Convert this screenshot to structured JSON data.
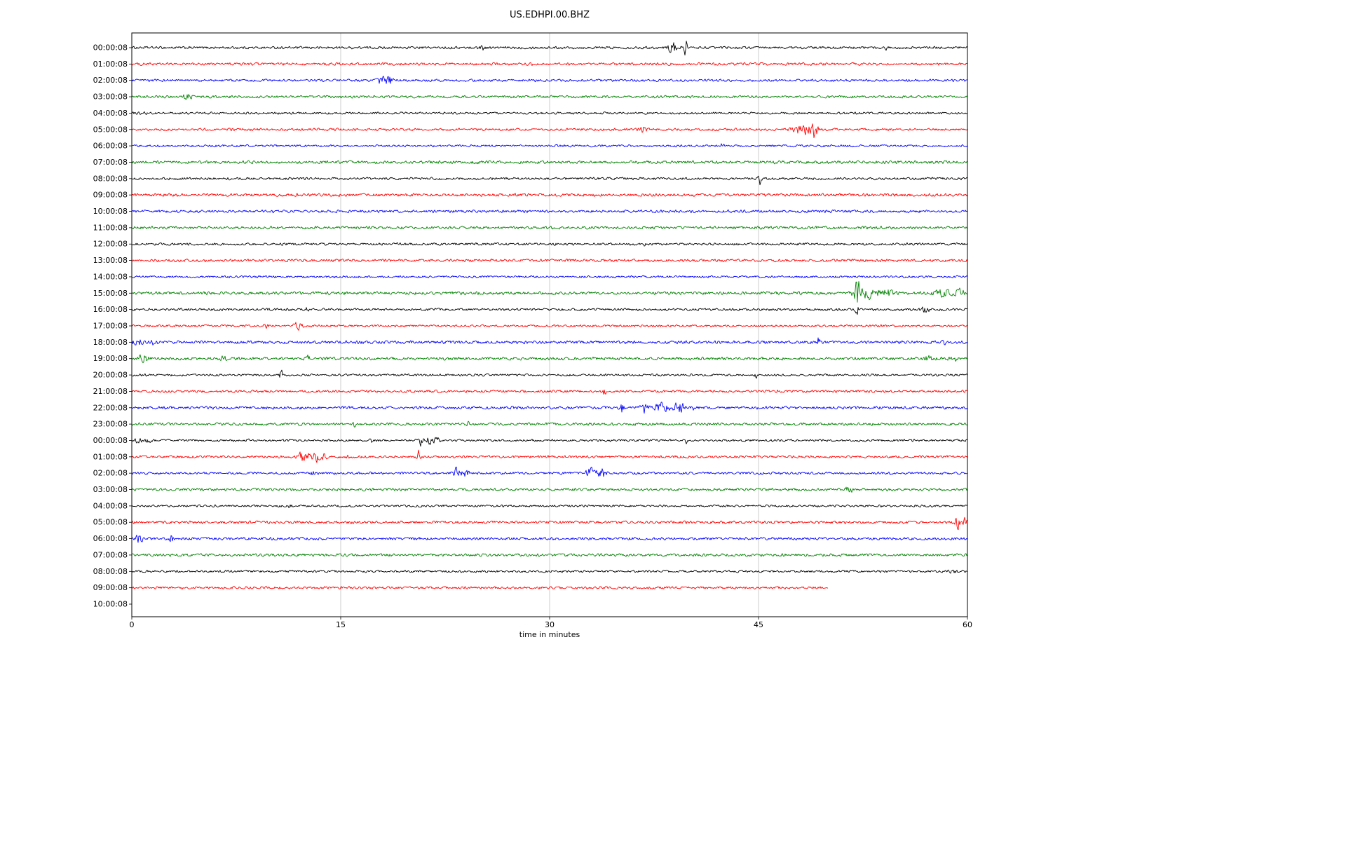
{
  "chart_data": {
    "type": "line",
    "subtype": "helicorder-dayplot-seismogram",
    "title": "US.EDHPI.00.BHZ",
    "xlabel": "time in minutes",
    "xlim": [
      0,
      60
    ],
    "x_ticks": [
      0,
      15,
      30,
      45,
      60
    ],
    "grid": "vertical-gridlines-at-ticks",
    "gridline_color": "#cccccc",
    "trace_colors_cycle": [
      "#000000",
      "#ff0000",
      "#0000ff",
      "#008000"
    ],
    "rows": [
      {
        "label": "00:00:08",
        "color": "#000000",
        "duration_min": 60,
        "base_amp": 2.0,
        "events": [
          {
            "t": 25.1,
            "w": 0.2,
            "a": 5
          },
          {
            "t": 38.8,
            "w": 0.3,
            "a": 9
          },
          {
            "t": 39.8,
            "w": 0.12,
            "a": 16
          },
          {
            "t": 54.2,
            "w": 0.08,
            "a": 5
          }
        ]
      },
      {
        "label": "01:00:08",
        "color": "#ff0000",
        "duration_min": 60,
        "base_amp": 2.2,
        "events": []
      },
      {
        "label": "02:00:08",
        "color": "#0000ff",
        "duration_min": 60,
        "base_amp": 2.0,
        "events": [
          {
            "t": 18.1,
            "w": 0.35,
            "a": 10
          },
          {
            "t": 18.6,
            "w": 0.2,
            "a": 6
          }
        ]
      },
      {
        "label": "03:00:08",
        "color": "#008000",
        "duration_min": 60,
        "base_amp": 2.0,
        "events": [
          {
            "t": 4.0,
            "w": 0.3,
            "a": 5
          }
        ]
      },
      {
        "label": "04:00:08",
        "color": "#000000",
        "duration_min": 60,
        "base_amp": 1.8,
        "events": [
          {
            "t": 1.0,
            "w": 1.5,
            "a": 0.7
          }
        ]
      },
      {
        "label": "05:00:08",
        "color": "#ff0000",
        "duration_min": 60,
        "base_amp": 2.0,
        "events": [
          {
            "t": 36.6,
            "w": 0.3,
            "a": 7
          },
          {
            "t": 47.9,
            "w": 0.5,
            "a": 6
          },
          {
            "t": 48.5,
            "w": 0.15,
            "a": 8
          },
          {
            "t": 49.0,
            "w": 0.2,
            "a": 20
          }
        ]
      },
      {
        "label": "06:00:08",
        "color": "#0000ff",
        "duration_min": 60,
        "base_amp": 1.8,
        "events": [
          {
            "t": 42.4,
            "w": 0.08,
            "a": 6
          }
        ]
      },
      {
        "label": "07:00:08",
        "color": "#008000",
        "duration_min": 60,
        "base_amp": 2.4,
        "events": [
          {
            "t": 24.8,
            "w": 0.3,
            "a": 2
          }
        ]
      },
      {
        "label": "08:00:08",
        "color": "#000000",
        "duration_min": 60,
        "base_amp": 2.0,
        "events": [
          {
            "t": 45.1,
            "w": 0.15,
            "a": 10
          }
        ]
      },
      {
        "label": "09:00:08",
        "color": "#ff0000",
        "duration_min": 60,
        "base_amp": 2.4,
        "events": []
      },
      {
        "label": "10:00:08",
        "color": "#0000ff",
        "duration_min": 60,
        "base_amp": 2.2,
        "events": []
      },
      {
        "label": "11:00:08",
        "color": "#008000",
        "duration_min": 60,
        "base_amp": 2.2,
        "events": []
      },
      {
        "label": "12:00:08",
        "color": "#000000",
        "duration_min": 60,
        "base_amp": 2.0,
        "events": [
          {
            "t": 30.3,
            "w": 0.08,
            "a": 3
          },
          {
            "t": 36.8,
            "w": 0.1,
            "a": 2
          }
        ]
      },
      {
        "label": "13:00:08",
        "color": "#ff0000",
        "duration_min": 60,
        "base_amp": 2.2,
        "events": []
      },
      {
        "label": "14:00:08",
        "color": "#0000ff",
        "duration_min": 60,
        "base_amp": 1.8,
        "events": []
      },
      {
        "label": "15:00:08",
        "color": "#008000",
        "duration_min": 60,
        "base_amp": 2.4,
        "events": [
          {
            "t": 52.1,
            "w": 0.3,
            "a": 22
          },
          {
            "t": 53.0,
            "w": 0.7,
            "a": 9
          },
          {
            "t": 54.3,
            "w": 0.5,
            "a": 5
          },
          {
            "t": 58.5,
            "w": 1.0,
            "a": 5
          },
          {
            "t": 59.5,
            "w": 0.3,
            "a": 4
          }
        ]
      },
      {
        "label": "16:00:08",
        "color": "#000000",
        "duration_min": 60,
        "base_amp": 2.0,
        "events": [
          {
            "t": 12.6,
            "w": 0.2,
            "a": 3
          },
          {
            "t": 52.1,
            "w": 0.12,
            "a": 9
          },
          {
            "t": 57.0,
            "w": 0.3,
            "a": 4
          }
        ]
      },
      {
        "label": "17:00:08",
        "color": "#ff0000",
        "duration_min": 60,
        "base_amp": 1.8,
        "events": [
          {
            "t": 9.7,
            "w": 0.25,
            "a": 4
          },
          {
            "t": 11.9,
            "w": 0.3,
            "a": 6
          }
        ]
      },
      {
        "label": "18:00:08",
        "color": "#0000ff",
        "duration_min": 60,
        "base_amp": 2.4,
        "events": [
          {
            "t": 0.4,
            "w": 0.3,
            "a": 6
          },
          {
            "t": 1.5,
            "w": 0.3,
            "a": 3
          },
          {
            "t": 49.3,
            "w": 0.1,
            "a": 9
          },
          {
            "t": 58.3,
            "w": 0.2,
            "a": 3
          }
        ]
      },
      {
        "label": "19:00:08",
        "color": "#008000",
        "duration_min": 60,
        "base_amp": 2.4,
        "events": [
          {
            "t": 0.8,
            "w": 0.4,
            "a": 6
          },
          {
            "t": 6.6,
            "w": 0.2,
            "a": 3
          },
          {
            "t": 12.6,
            "w": 0.15,
            "a": 6
          },
          {
            "t": 57.2,
            "w": 0.25,
            "a": 5
          },
          {
            "t": 59.0,
            "w": 0.3,
            "a": 4
          }
        ]
      },
      {
        "label": "20:00:08",
        "color": "#000000",
        "duration_min": 60,
        "base_amp": 1.8,
        "events": [
          {
            "t": 10.7,
            "w": 0.1,
            "a": 12
          },
          {
            "t": 44.8,
            "w": 0.1,
            "a": 5
          }
        ]
      },
      {
        "label": "21:00:08",
        "color": "#ff0000",
        "duration_min": 60,
        "base_amp": 2.0,
        "events": [
          {
            "t": 33.9,
            "w": 0.12,
            "a": 9
          },
          {
            "t": 46.3,
            "w": 0.1,
            "a": 4
          }
        ]
      },
      {
        "label": "22:00:08",
        "color": "#0000ff",
        "duration_min": 60,
        "base_amp": 2.4,
        "events": [
          {
            "t": 35.2,
            "w": 0.12,
            "a": 9
          },
          {
            "t": 36.8,
            "w": 0.25,
            "a": 7
          },
          {
            "t": 38.0,
            "w": 0.5,
            "a": 8
          },
          {
            "t": 39.3,
            "w": 0.4,
            "a": 7
          },
          {
            "t": 40.4,
            "w": 0.15,
            "a": 5
          }
        ]
      },
      {
        "label": "23:00:08",
        "color": "#008000",
        "duration_min": 60,
        "base_amp": 2.2,
        "events": [
          {
            "t": 15.9,
            "w": 0.15,
            "a": 4
          },
          {
            "t": 24.2,
            "w": 0.15,
            "a": 3
          }
        ]
      },
      {
        "label": "00:00:08",
        "color": "#000000",
        "duration_min": 60,
        "base_amp": 1.8,
        "events": [
          {
            "t": 0.5,
            "w": 0.2,
            "a": 5
          },
          {
            "t": 1.2,
            "w": 0.2,
            "a": 3
          },
          {
            "t": 8.3,
            "w": 0.1,
            "a": 3
          },
          {
            "t": 17.2,
            "w": 0.1,
            "a": 5
          },
          {
            "t": 20.7,
            "w": 0.2,
            "a": 13
          },
          {
            "t": 21.4,
            "w": 0.25,
            "a": 7
          },
          {
            "t": 21.9,
            "w": 0.15,
            "a": 6
          },
          {
            "t": 39.8,
            "w": 0.08,
            "a": 4
          }
        ]
      },
      {
        "label": "01:00:08",
        "color": "#ff0000",
        "duration_min": 60,
        "base_amp": 2.0,
        "events": [
          {
            "t": 12.2,
            "w": 0.25,
            "a": 9
          },
          {
            "t": 13.0,
            "w": 0.4,
            "a": 11
          },
          {
            "t": 13.8,
            "w": 0.25,
            "a": 5
          },
          {
            "t": 15.5,
            "w": 0.1,
            "a": 3
          },
          {
            "t": 20.6,
            "w": 0.12,
            "a": 10
          }
        ]
      },
      {
        "label": "02:00:08",
        "color": "#0000ff",
        "duration_min": 60,
        "base_amp": 2.0,
        "events": [
          {
            "t": 13.0,
            "w": 0.08,
            "a": 5
          },
          {
            "t": 23.3,
            "w": 0.35,
            "a": 8
          },
          {
            "t": 24.0,
            "w": 0.2,
            "a": 5
          },
          {
            "t": 33.0,
            "w": 0.35,
            "a": 9
          },
          {
            "t": 33.8,
            "w": 0.25,
            "a": 11
          }
        ]
      },
      {
        "label": "03:00:08",
        "color": "#008000",
        "duration_min": 60,
        "base_amp": 2.2,
        "events": [
          {
            "t": 51.5,
            "w": 0.3,
            "a": 4
          }
        ]
      },
      {
        "label": "04:00:08",
        "color": "#000000",
        "duration_min": 60,
        "base_amp": 1.8,
        "events": [
          {
            "t": 11.3,
            "w": 0.12,
            "a": 5
          }
        ]
      },
      {
        "label": "05:00:08",
        "color": "#ff0000",
        "duration_min": 60,
        "base_amp": 2.2,
        "events": [
          {
            "t": 59.3,
            "w": 0.2,
            "a": 10
          },
          {
            "t": 59.8,
            "w": 0.15,
            "a": 7
          }
        ]
      },
      {
        "label": "06:00:08",
        "color": "#0000ff",
        "duration_min": 60,
        "base_amp": 2.2,
        "events": [
          {
            "t": 0.5,
            "w": 0.25,
            "a": 7
          },
          {
            "t": 2.8,
            "w": 0.15,
            "a": 6
          }
        ]
      },
      {
        "label": "07:00:08",
        "color": "#008000",
        "duration_min": 60,
        "base_amp": 2.2,
        "events": []
      },
      {
        "label": "08:00:08",
        "color": "#000000",
        "duration_min": 60,
        "base_amp": 1.8,
        "events": [
          {
            "t": 59.0,
            "w": 0.3,
            "a": 2
          }
        ]
      },
      {
        "label": "09:00:08",
        "color": "#ff0000",
        "duration_min": 50,
        "base_amp": 2.0,
        "events": []
      },
      {
        "label": "10:00:08",
        "color": "#0000ff",
        "duration_min": 0,
        "base_amp": 0,
        "events": []
      }
    ]
  }
}
